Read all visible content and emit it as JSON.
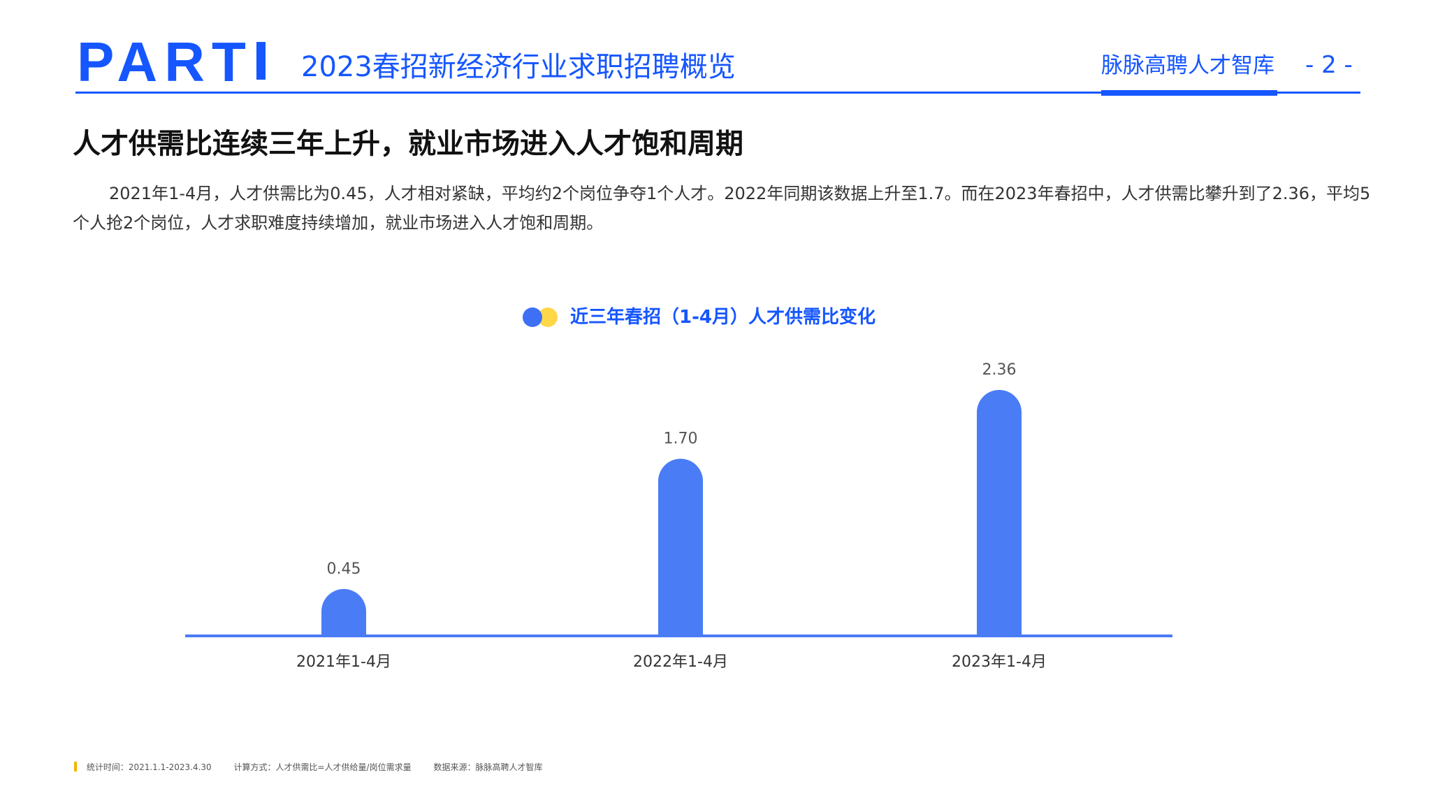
{
  "header": {
    "part_label": "PART",
    "title": "2023春招新经济行业求职招聘概览",
    "brand": "脉脉高聘人才智库",
    "page_number": "- 2 -"
  },
  "section": {
    "title": "人才供需比连续三年上升，就业市场进入人才饱和周期",
    "body": "2021年1-4月，人才供需比为0.45，人才相对紧缺，平均约2个岗位争夺1个人才。2022年同期该数据上升至1.7。而在2023年春招中，人才供需比攀升到了2.36，平均5个人抢2个岗位，人才求职难度持续增加，就业市场进入人才饱和周期。"
  },
  "chart_data": {
    "type": "bar",
    "title": "近三年春招（1-4月）人才供需比变化",
    "categories": [
      "2021年1-4月",
      "2022年1-4月",
      "2023年1-4月"
    ],
    "values": [
      0.45,
      1.7,
      2.36
    ],
    "value_labels": [
      "0.45",
      "1.70",
      "2.36"
    ],
    "ylim": [
      0,
      2.36
    ],
    "grid": false,
    "bar_color": "#4a7cf6",
    "axis_color": "#4a7cf6"
  },
  "footer": {
    "stat_time": "统计时间：2021.1.1-2023.4.30",
    "method": "计算方式：人才供需比=人才供给量/岗位需求量",
    "source": "数据来源：脉脉高聘人才智库"
  },
  "colors": {
    "brand_blue": "#1556ff",
    "legend_yellow": "#ffd84a",
    "footer_mark": "#f5b400"
  }
}
